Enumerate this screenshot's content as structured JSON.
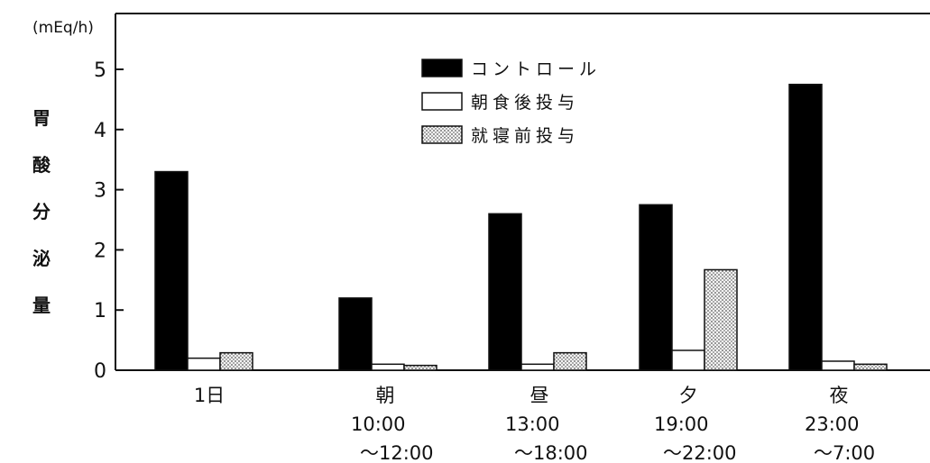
{
  "chart_data": {
    "type": "bar",
    "unit_label": "(mEq/h)",
    "ylabel": "胃酸分泌量",
    "ylim": [
      0,
      5
    ],
    "yticks": [
      "0",
      "1",
      "2",
      "3",
      "4",
      "5"
    ],
    "categories": [
      {
        "lines": [
          "1日"
        ]
      },
      {
        "lines": [
          "朝",
          "10:00",
          "～12:00"
        ]
      },
      {
        "lines": [
          "昼",
          "13:00",
          "～18:00"
        ]
      },
      {
        "lines": [
          "夕",
          "19:00",
          "～22:00"
        ]
      },
      {
        "lines": [
          "夜",
          "23:00",
          "～7:00"
        ]
      }
    ],
    "series": [
      {
        "name": "コントロール",
        "fill": "solid",
        "color": "#000000",
        "values": [
          3.3,
          1.2,
          2.6,
          2.75,
          4.75
        ]
      },
      {
        "name": "朝食後投与",
        "fill": "white",
        "color": "#ffffff",
        "values": [
          0.2,
          0.1,
          0.1,
          0.33,
          0.15
        ]
      },
      {
        "name": "就寝前投与",
        "fill": "dotted",
        "color": "#d8d8d8",
        "values": [
          0.29,
          0.08,
          0.29,
          1.67,
          0.1
        ]
      }
    ],
    "legend_position": "top-center",
    "grid": false
  }
}
